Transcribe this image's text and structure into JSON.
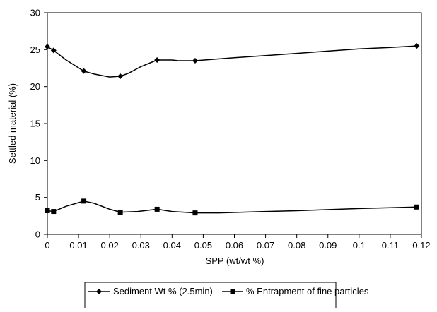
{
  "chart_data": {
    "type": "line",
    "xlabel": "SPP (wt/wt %)",
    "ylabel": "Settled material (%)",
    "xlim": [
      0,
      0.12
    ],
    "ylim": [
      0,
      30
    ],
    "x_ticks": [
      "0",
      "0.01",
      "0.02",
      "0.03",
      "0.04",
      "0.05",
      "0.06",
      "0.07",
      "0.08",
      "0.09",
      "0.1",
      "0.11",
      "0.12"
    ],
    "y_ticks": [
      "0",
      "5",
      "10",
      "15",
      "20",
      "25",
      "30"
    ],
    "grid": false,
    "legend_position": "bottom",
    "series": [
      {
        "name": "Sediment Wt % (2.5min)",
        "marker": "diamond",
        "color": "#000000",
        "points": [
          [
            0,
            25.4
          ],
          [
            0.002,
            24.9
          ],
          [
            0.0117,
            22.1
          ],
          [
            0.0234,
            21.4
          ],
          [
            0.0352,
            23.6
          ],
          [
            0.0474,
            23.5
          ],
          [
            0.1185,
            25.5
          ]
        ],
        "curve": [
          [
            0,
            25.4
          ],
          [
            0.002,
            24.9
          ],
          [
            0.006,
            23.6
          ],
          [
            0.0117,
            22.1
          ],
          [
            0.015,
            21.7
          ],
          [
            0.02,
            21.3
          ],
          [
            0.0234,
            21.4
          ],
          [
            0.026,
            21.8
          ],
          [
            0.03,
            22.7
          ],
          [
            0.0352,
            23.6
          ],
          [
            0.04,
            23.6
          ],
          [
            0.042,
            23.5
          ],
          [
            0.0474,
            23.5
          ],
          [
            0.06,
            23.9
          ],
          [
            0.07,
            24.2
          ],
          [
            0.08,
            24.5
          ],
          [
            0.09,
            24.8
          ],
          [
            0.1,
            25.1
          ],
          [
            0.11,
            25.3
          ],
          [
            0.1185,
            25.5
          ]
        ]
      },
      {
        "name": "% Entrapment of fine particles",
        "marker": "square",
        "color": "#000000",
        "points": [
          [
            0,
            3.2
          ],
          [
            0.002,
            3.1
          ],
          [
            0.0117,
            4.5
          ],
          [
            0.0234,
            3.0
          ],
          [
            0.0352,
            3.4
          ],
          [
            0.0474,
            2.9
          ],
          [
            0.1185,
            3.7
          ]
        ],
        "curve": [
          [
            0,
            3.2
          ],
          [
            0.002,
            3.1
          ],
          [
            0.006,
            3.8
          ],
          [
            0.0117,
            4.5
          ],
          [
            0.015,
            4.2
          ],
          [
            0.02,
            3.4
          ],
          [
            0.0234,
            3.0
          ],
          [
            0.029,
            3.1
          ],
          [
            0.0352,
            3.4
          ],
          [
            0.04,
            3.1
          ],
          [
            0.0474,
            2.9
          ],
          [
            0.055,
            2.9
          ],
          [
            0.07,
            3.1
          ],
          [
            0.08,
            3.2
          ],
          [
            0.1,
            3.5
          ],
          [
            0.11,
            3.6
          ],
          [
            0.1185,
            3.7
          ]
        ]
      }
    ]
  }
}
